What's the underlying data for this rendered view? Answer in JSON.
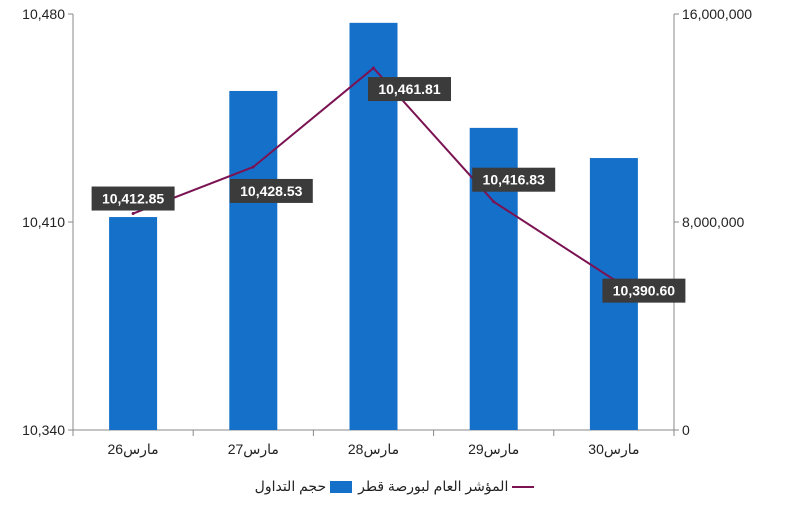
{
  "chart_data": {
    "type": "bar",
    "categories": [
      "26مارس",
      "27مارس",
      "28مارس",
      "29مارس",
      "30مارس"
    ],
    "series": [
      {
        "name": "حجم التداول",
        "type": "bar",
        "axis": "right",
        "values": [
          8190000,
          13040000,
          15660000,
          11620000,
          10460000
        ],
        "color": "#1570C9"
      },
      {
        "name": "المؤشر العام لبورصة قطر",
        "type": "line",
        "axis": "left",
        "values": [
          10412.85,
          10428.53,
          10461.81,
          10416.83,
          10390.6
        ],
        "data_labels": [
          "10,412.85",
          "10,428.53",
          "10,461.81",
          "10,416.83",
          "10,390.60"
        ],
        "color": "#7B1353"
      }
    ],
    "y_left": {
      "lim": [
        10340,
        10480
      ],
      "ticks": [
        10340,
        10410,
        10480
      ],
      "tick_labels": [
        "10,340",
        "10,410",
        "10,480"
      ]
    },
    "y_right": {
      "lim": [
        0,
        16000000
      ],
      "ticks": [
        0,
        8000000,
        16000000
      ],
      "tick_labels": [
        "0",
        "8,000,000",
        "16,000,000"
      ]
    },
    "grid": false,
    "legend": "bottom-center",
    "label_box_color": "#3B3B3B"
  }
}
